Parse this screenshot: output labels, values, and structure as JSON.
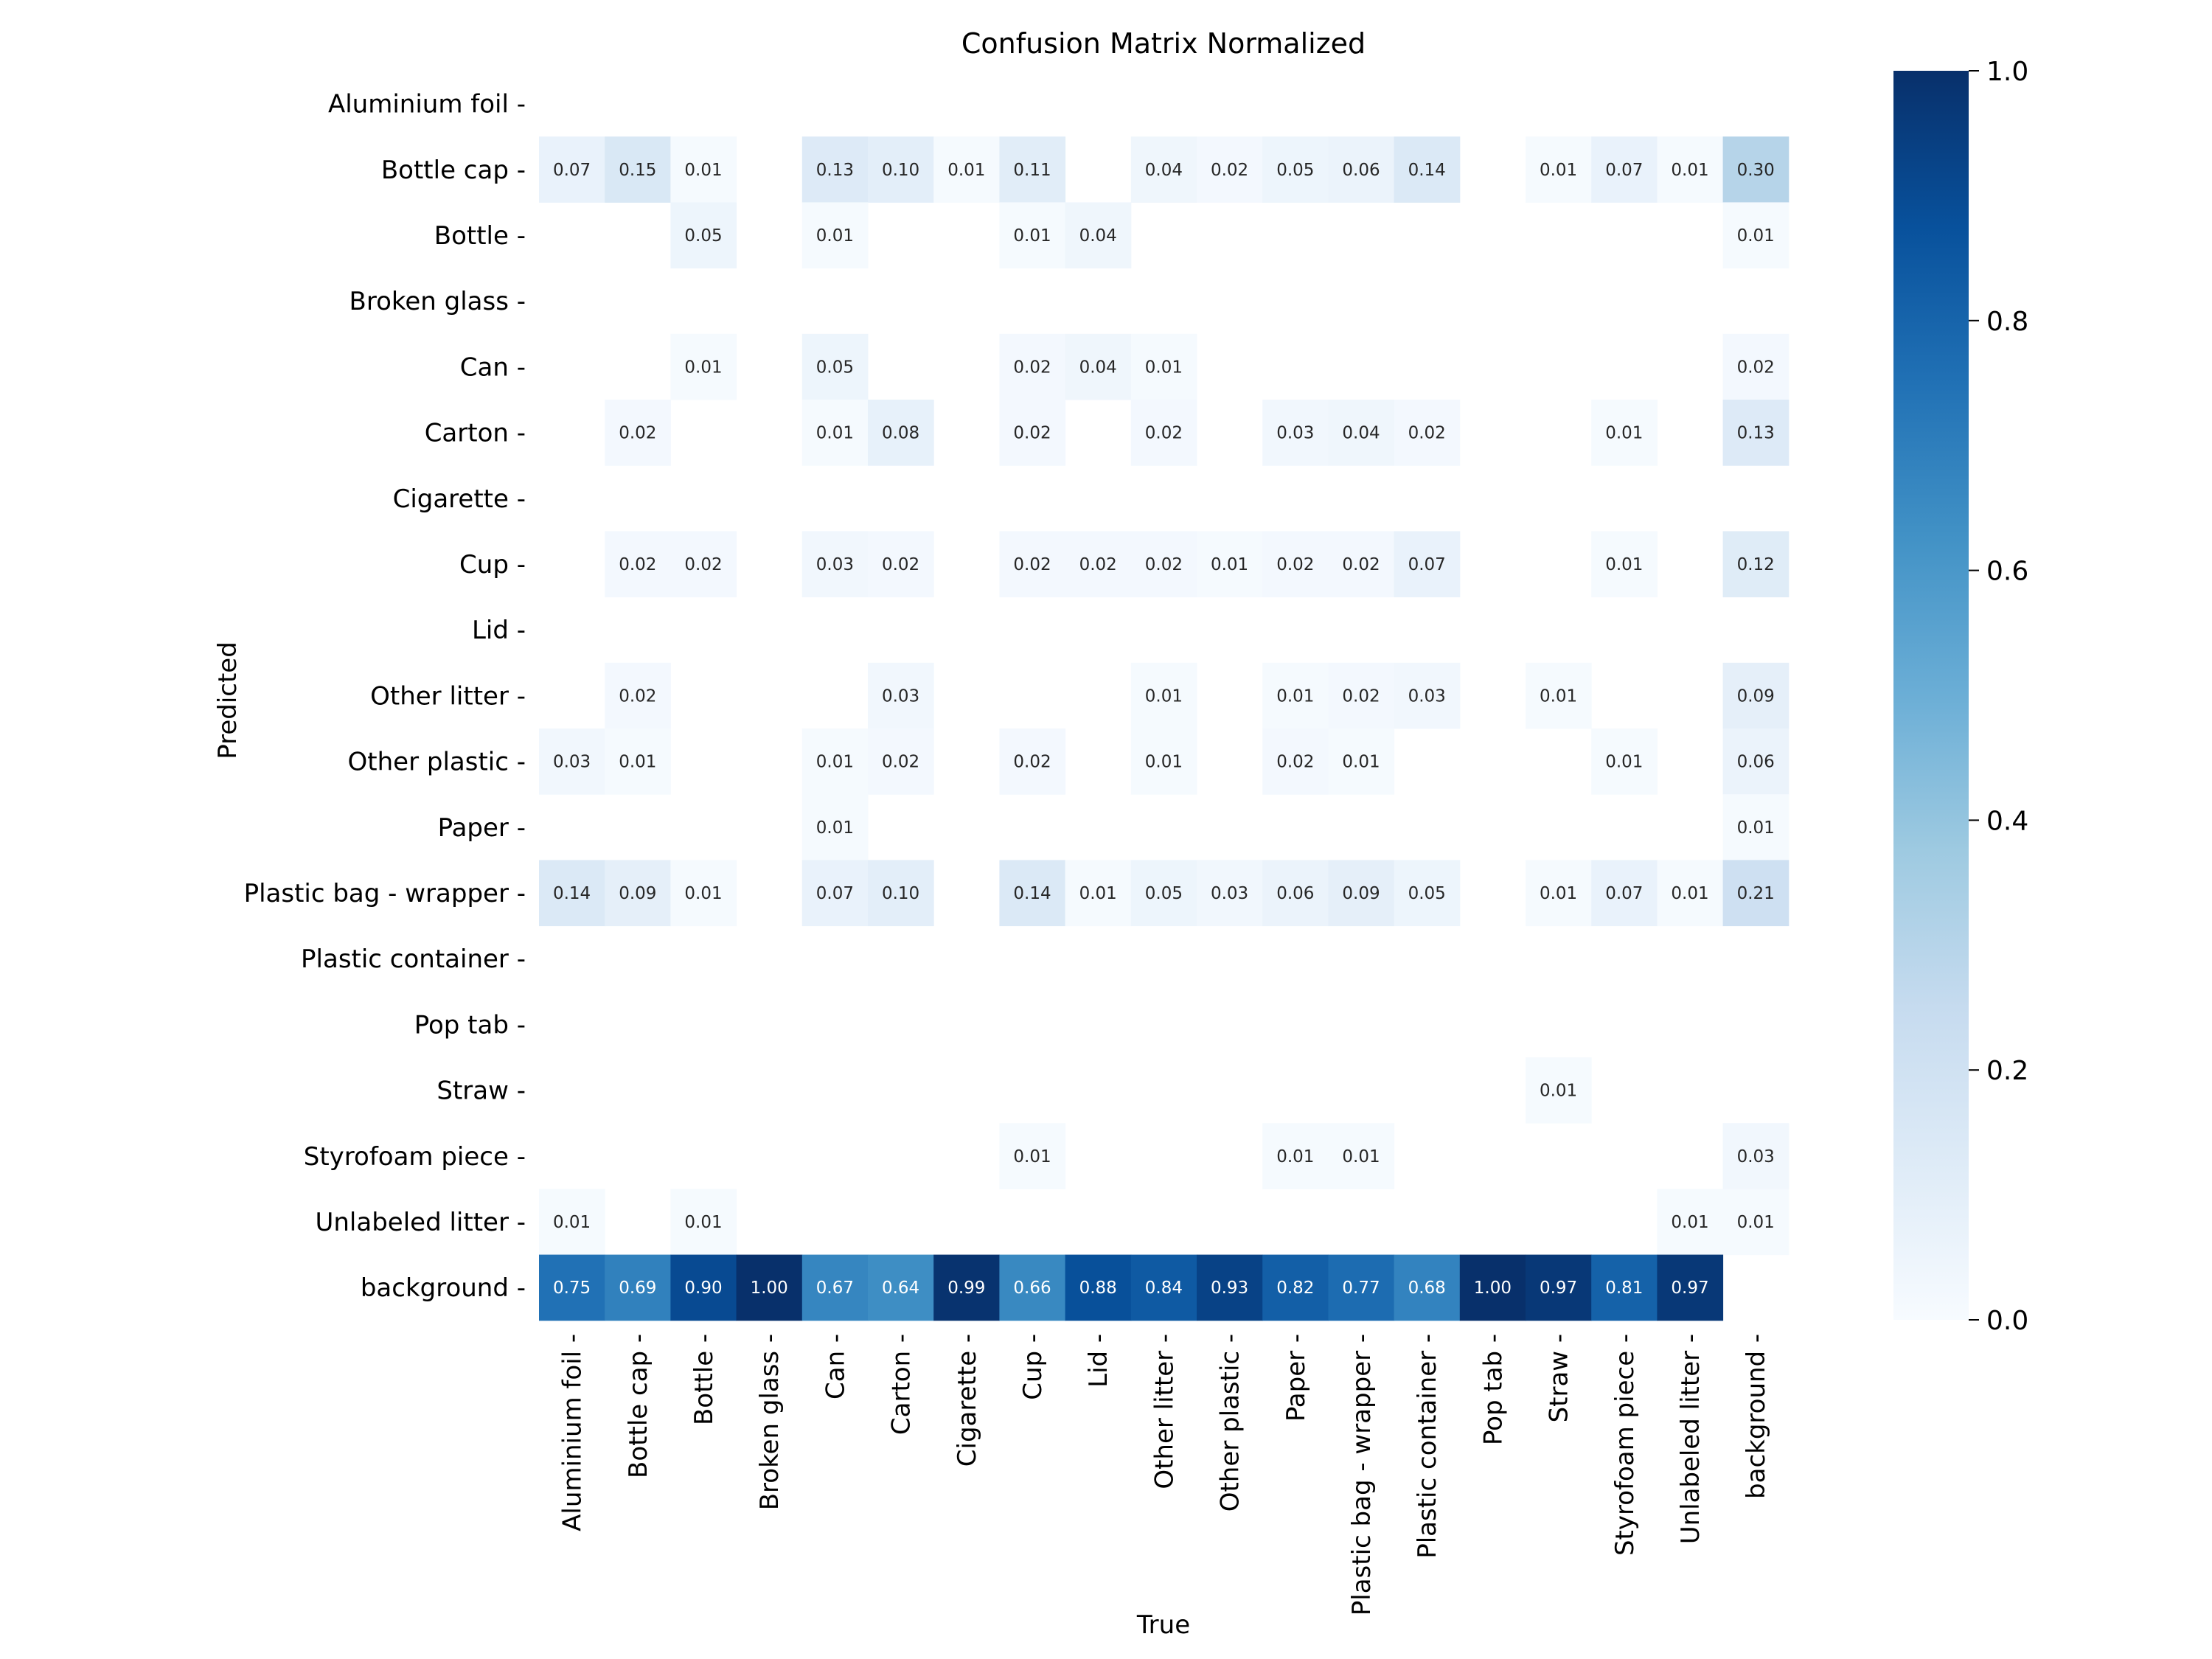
{
  "chart_data": {
    "type": "heatmap",
    "title": "Confusion Matrix Normalized",
    "xlabel": "True",
    "ylabel": "Predicted",
    "x_categories": [
      "Aluminium foil",
      "Bottle cap",
      "Bottle",
      "Broken glass",
      "Can",
      "Carton",
      "Cigarette",
      "Cup",
      "Lid",
      "Other litter",
      "Other plastic",
      "Paper",
      "Plastic bag - wrapper",
      "Plastic container",
      "Pop tab",
      "Straw",
      "Styrofoam piece",
      "Unlabeled litter",
      "background"
    ],
    "y_categories": [
      "Aluminium foil",
      "Bottle cap",
      "Bottle",
      "Broken glass",
      "Can",
      "Carton",
      "Cigarette",
      "Cup",
      "Lid",
      "Other litter",
      "Other plastic",
      "Paper",
      "Plastic bag - wrapper",
      "Plastic container",
      "Pop tab",
      "Straw",
      "Styrofoam piece",
      "Unlabeled litter",
      "background"
    ],
    "values": [
      [
        null,
        null,
        null,
        null,
        null,
        null,
        null,
        null,
        null,
        null,
        null,
        null,
        null,
        null,
        null,
        null,
        null,
        null,
        null
      ],
      [
        0.07,
        0.15,
        0.01,
        null,
        0.13,
        0.1,
        0.01,
        0.11,
        null,
        0.04,
        0.02,
        0.05,
        0.06,
        0.14,
        null,
        0.01,
        0.07,
        0.01,
        0.3
      ],
      [
        null,
        null,
        0.05,
        null,
        0.01,
        null,
        null,
        0.01,
        0.04,
        null,
        null,
        null,
        null,
        null,
        null,
        null,
        null,
        null,
        0.01
      ],
      [
        null,
        null,
        null,
        null,
        null,
        null,
        null,
        null,
        null,
        null,
        null,
        null,
        null,
        null,
        null,
        null,
        null,
        null,
        null
      ],
      [
        null,
        null,
        0.01,
        null,
        0.05,
        null,
        null,
        0.02,
        0.04,
        0.01,
        null,
        null,
        null,
        null,
        null,
        null,
        null,
        null,
        0.02
      ],
      [
        null,
        0.02,
        null,
        null,
        0.01,
        0.08,
        null,
        0.02,
        null,
        0.02,
        null,
        0.03,
        0.04,
        0.02,
        null,
        null,
        0.01,
        null,
        0.13
      ],
      [
        null,
        null,
        null,
        null,
        null,
        null,
        null,
        null,
        null,
        null,
        null,
        null,
        null,
        null,
        null,
        null,
        null,
        null,
        null
      ],
      [
        null,
        0.02,
        0.02,
        null,
        0.03,
        0.02,
        null,
        0.02,
        0.02,
        0.02,
        0.01,
        0.02,
        0.02,
        0.07,
        null,
        null,
        0.01,
        null,
        0.12
      ],
      [
        null,
        null,
        null,
        null,
        null,
        null,
        null,
        null,
        null,
        null,
        null,
        null,
        null,
        null,
        null,
        null,
        null,
        null,
        null
      ],
      [
        null,
        0.02,
        null,
        null,
        null,
        0.03,
        null,
        null,
        null,
        0.01,
        null,
        0.01,
        0.02,
        0.03,
        null,
        0.01,
        null,
        null,
        0.09
      ],
      [
        0.03,
        0.01,
        null,
        null,
        0.01,
        0.02,
        null,
        0.02,
        null,
        0.01,
        null,
        0.02,
        0.01,
        null,
        null,
        null,
        0.01,
        null,
        0.06
      ],
      [
        null,
        null,
        null,
        null,
        0.01,
        null,
        null,
        null,
        null,
        null,
        null,
        null,
        null,
        null,
        null,
        null,
        null,
        null,
        0.01
      ],
      [
        0.14,
        0.09,
        0.01,
        null,
        0.07,
        0.1,
        null,
        0.14,
        0.01,
        0.05,
        0.03,
        0.06,
        0.09,
        0.05,
        null,
        0.01,
        0.07,
        0.01,
        0.21
      ],
      [
        null,
        null,
        null,
        null,
        null,
        null,
        null,
        null,
        null,
        null,
        null,
        null,
        null,
        null,
        null,
        null,
        null,
        null,
        null
      ],
      [
        null,
        null,
        null,
        null,
        null,
        null,
        null,
        null,
        null,
        null,
        null,
        null,
        null,
        null,
        null,
        null,
        null,
        null,
        null
      ],
      [
        null,
        null,
        null,
        null,
        null,
        null,
        null,
        null,
        null,
        null,
        null,
        null,
        null,
        null,
        null,
        0.01,
        null,
        null,
        null
      ],
      [
        null,
        null,
        null,
        null,
        null,
        null,
        null,
        0.01,
        null,
        null,
        null,
        0.01,
        0.01,
        null,
        null,
        null,
        null,
        null,
        0.03
      ],
      [
        0.01,
        null,
        0.01,
        null,
        null,
        null,
        null,
        null,
        null,
        null,
        null,
        null,
        null,
        null,
        null,
        null,
        null,
        0.01,
        0.01
      ],
      [
        0.75,
        0.69,
        0.9,
        1.0,
        0.67,
        0.64,
        0.99,
        0.66,
        0.88,
        0.84,
        0.93,
        0.82,
        0.77,
        0.68,
        1.0,
        0.97,
        0.81,
        0.97,
        null
      ]
    ],
    "colorbar": {
      "colormap": "Blues",
      "range": [
        0.0,
        1.0
      ],
      "tick_labels": [
        "0.0",
        "0.2",
        "0.4",
        "0.6",
        "0.8",
        "1.0"
      ]
    },
    "grid": false
  }
}
